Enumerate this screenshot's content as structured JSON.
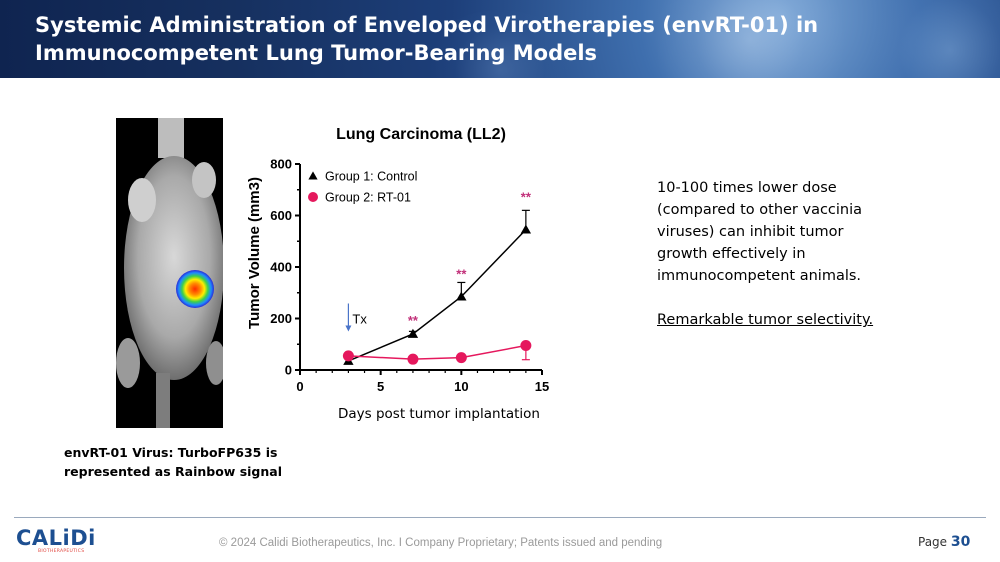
{
  "title": {
    "line1": "Systemic Administration of Enveloped Virotherapies (envRT-01) in",
    "line2": "Immunocompetent Lung Tumor-Bearing Models"
  },
  "image_caption": {
    "line1": "envRT-01 Virus: TurboFP635 is",
    "line2": "represented as Rainbow signal"
  },
  "chart_data": {
    "type": "line",
    "title": "Lung Carcinoma (LL2)",
    "xlabel": "Days post tumor implantation",
    "ylabel": "Tumor Volume (mm3)",
    "xlim": [
      0,
      15
    ],
    "ylim": [
      0,
      800
    ],
    "xticks": [
      "0",
      "5",
      "10",
      "15"
    ],
    "yticks": [
      "0",
      "200",
      "400",
      "600",
      "800"
    ],
    "legend_position": "top-left",
    "series": [
      {
        "name": "Group 1: Control",
        "color": "#000000",
        "marker": "triangle",
        "x": [
          3,
          7,
          10,
          14
        ],
        "y": [
          35,
          140,
          285,
          545
        ],
        "error": [
          0,
          10,
          55,
          75
        ]
      },
      {
        "name": "Group 2: RT-01",
        "color": "#e5185d",
        "marker": "circle",
        "x": [
          3,
          7,
          10,
          14
        ],
        "y": [
          55,
          42,
          48,
          95
        ],
        "error": [
          0,
          0,
          0,
          55
        ]
      }
    ],
    "annotations": [
      {
        "text": "Tx",
        "x": 3,
        "y": 200
      },
      {
        "text": "**",
        "x": 7,
        "y": 175
      },
      {
        "text": "**",
        "x": 10,
        "y": 355
      },
      {
        "text": "**",
        "x": 14,
        "y": 655
      }
    ]
  },
  "side_text": {
    "paragraph": "10-100 times lower dose\n(compared to other vaccinia\nviruses) can inhibit tumor\ngrowth effectively in\nimmunocompetent animals.",
    "highlight": "Remarkable tumor selectivity."
  },
  "footer": {
    "logo_text": "CALiDi",
    "logo_sub": "BIOTHERAPEUTICS",
    "copyright": "© 2024 Calidi Biotherapeutics, Inc. I  Company Proprietary; Patents issued and pending",
    "page_label": "Page",
    "page_number": "30"
  },
  "colors": {
    "brand_blue": "#1d4f91",
    "rt01_pink": "#e5185d",
    "asterisk_purple": "#c2317a",
    "tx_arrow": "#4a74c9"
  }
}
